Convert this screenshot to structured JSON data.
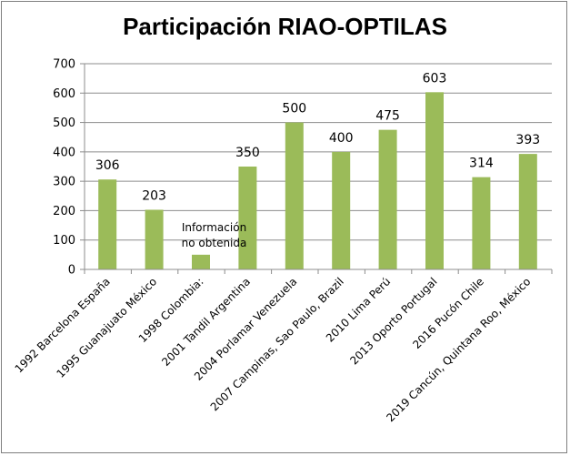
{
  "chart_data": {
    "type": "bar",
    "title": "Participación RIAO-OPTILAS",
    "categories": [
      "1992 Barcelona España",
      "1995 Guanajuato México",
      "1998 Colombia:",
      "2001 Tandil Argentina",
      "2004 Porlamar Venezuela",
      "2007 Campinas, Sao Paulo, Brazil",
      "2010 Lima Perú",
      "2013 Oporto Portugal",
      "2016 Pucón Chile",
      "2019 Cancún, Quintana Roo, México"
    ],
    "values": [
      306,
      203,
      50,
      350,
      500,
      400,
      475,
      603,
      314,
      393
    ],
    "data_labels": [
      "306",
      "203",
      "",
      "350",
      "500",
      "400",
      "475",
      "603",
      "314",
      "393"
    ],
    "annotation": [
      "Información",
      "no obtenida"
    ],
    "ylim": [
      0,
      700
    ],
    "yticks": [
      0,
      100,
      200,
      300,
      400,
      500,
      600,
      700
    ],
    "grid": true,
    "bar_color": "#9bbb59",
    "xlabel": "",
    "ylabel": ""
  }
}
